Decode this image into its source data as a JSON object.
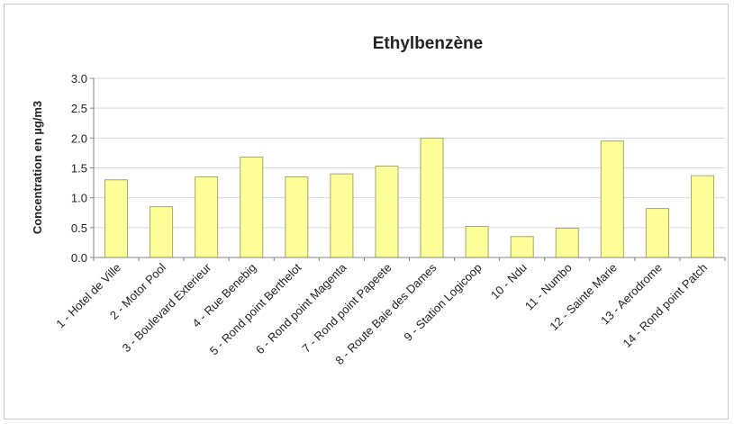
{
  "chart_data": {
    "type": "bar",
    "title": "Ethylbenzène",
    "xlabel": "",
    "ylabel": "Concentration en µg/m3",
    "ylim": [
      0,
      3
    ],
    "yticks": [
      "0.0",
      "0.5",
      "1.0",
      "1.5",
      "2.0",
      "2.5",
      "3.0"
    ],
    "grid": true,
    "categories": [
      "1 - Hotel de Ville",
      "2 - Motor Pool",
      "3 - Boulevard Exterieur",
      "4 - Rue Benebig",
      "5 - Rond point Berthelot",
      "6 - Rond point Magenta",
      "7 - Rond point Papeete",
      "8 - Route Baie des Dames",
      "9 - Station Logicoop",
      "10 - Ndu",
      "11 - Numbo",
      "12 - Sainte Marie",
      "13 - Aerodrome",
      "14 - Rond point Patch"
    ],
    "values": [
      1.3,
      0.85,
      1.35,
      1.68,
      1.35,
      1.4,
      1.53,
      2.0,
      0.52,
      0.35,
      0.49,
      1.95,
      0.82,
      1.37
    ],
    "colors": {
      "bar_fill": "#ffff99",
      "bar_stroke": "#a8a860",
      "grid": "#d9d9d9"
    }
  }
}
